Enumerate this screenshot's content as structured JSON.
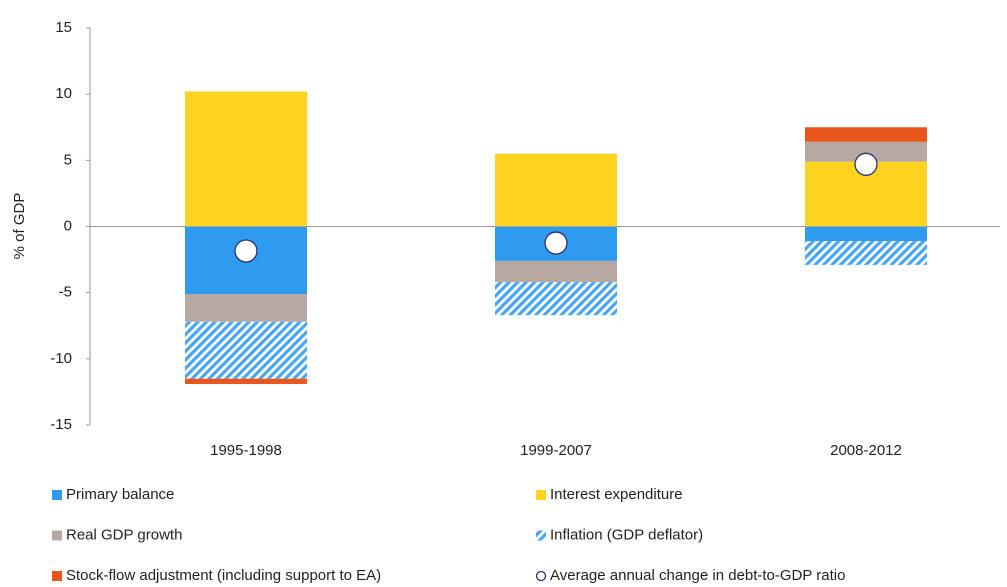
{
  "chart_data": {
    "type": "bar",
    "stacked": true,
    "y_label": "% of GDP",
    "categories": [
      "1995-1998",
      "1999-2007",
      "2008-2012"
    ],
    "ylim": [
      -15,
      15
    ],
    "yticks": [
      -15,
      -10,
      -5,
      0,
      5,
      10,
      15
    ],
    "series": [
      {
        "name": "Primary balance",
        "color": "#2e9af0",
        "values": [
          -5.1,
          -2.6,
          -1.1
        ]
      },
      {
        "name": "Interest expenditure",
        "color": "#ffd320",
        "values": [
          10.2,
          5.5,
          4.9
        ]
      },
      {
        "name": "Real GDP growth",
        "color": "#b7a9a1",
        "values": [
          -2.1,
          -1.6,
          1.5
        ]
      },
      {
        "name": "Inflation (GDP deflator)",
        "color": "#47a6f4",
        "pattern": "hatch",
        "values": [
          -4.3,
          -2.5,
          -1.8
        ]
      },
      {
        "name": "Stock-flow adjustment (including support to EA)",
        "color": "#e8561c",
        "values": [
          -0.4,
          0,
          1.1
        ]
      },
      {
        "name": "Average annual change in debt-to-GDP ratio",
        "type": "scatter",
        "color": "#2b2f6b",
        "values": [
          -1.85,
          -1.25,
          4.7
        ]
      }
    ]
  }
}
